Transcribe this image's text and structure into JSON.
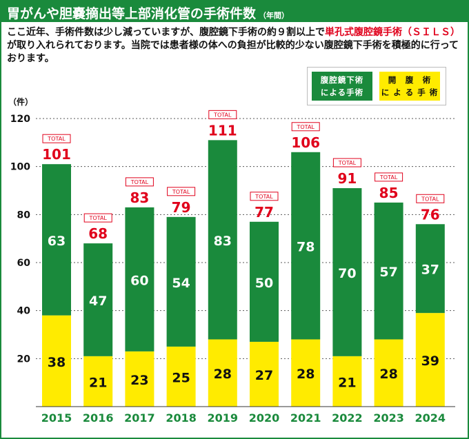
{
  "header": {
    "title": "胃がんや胆嚢摘出等上部消化管の手術件数",
    "title_sub": "（年間）"
  },
  "description": {
    "part1": "ここ近年、手術件数は少し減っていますが、腹腔鏡下手術の約９割以上で",
    "highlight": "単孔式腹腔鏡手術（ＳＩＬＳ）",
    "part2": "が取り入れられております。当院では患者様の体への負担が比較的少ない腹腔鏡下手術を積極的に行っております。"
  },
  "legend": {
    "laparoscopic_line1": "腹腔鏡下術",
    "laparoscopic_line2": "による手術",
    "open_line1": "開　腹　術",
    "open_line2": "に よ る 手 術"
  },
  "colors": {
    "laparoscopic": "#1a8a3c",
    "open": "#ffeb00",
    "total": "#e0001b",
    "title_bar": "#1a8a3c"
  },
  "chart_data": {
    "type": "bar",
    "stacked": true,
    "categories": [
      "2015",
      "2016",
      "2017",
      "2018",
      "2019",
      "2020",
      "2021",
      "2022",
      "2023",
      "2024"
    ],
    "series": [
      {
        "name": "開腹術による手術",
        "values": [
          38,
          21,
          23,
          25,
          28,
          27,
          28,
          21,
          28,
          39
        ]
      },
      {
        "name": "腹腔鏡下術による手術",
        "values": [
          63,
          47,
          60,
          54,
          83,
          50,
          78,
          70,
          57,
          37
        ]
      }
    ],
    "totals": [
      101,
      68,
      83,
      79,
      111,
      77,
      106,
      91,
      85,
      76
    ],
    "total_label": "TOTAL",
    "ylabel": "（件）",
    "ylim": [
      0,
      120
    ],
    "yticks": [
      20,
      40,
      60,
      80,
      100,
      120
    ],
    "grid": true,
    "legend_position": "top-right"
  }
}
